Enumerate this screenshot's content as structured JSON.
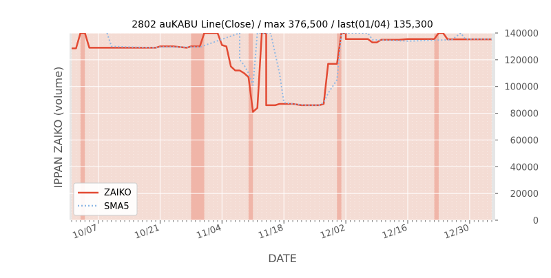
{
  "chart_data": {
    "type": "line",
    "title": "2802 auKABU Line(Close) / max 376,500 / last(01/04) 135,300",
    "xlabel": "DATE",
    "ylabel": "IPPAN ZAIKO (volume)",
    "ylim": [
      0,
      140000
    ],
    "y_side": "right",
    "y_ticks": [
      0,
      20000,
      40000,
      60000,
      80000,
      100000,
      120000,
      140000
    ],
    "y_tick_labels": [
      "0",
      "20000",
      "40000",
      "60000",
      "80000",
      "100000",
      "120000",
      "140000"
    ],
    "x_tick_labels": [
      "10/07",
      "10/21",
      "11/04",
      "11/18",
      "12/02",
      "12/16",
      "12/30"
    ],
    "x_range": [
      "2019-10-01",
      "2020-01-04"
    ],
    "x_ticks": [
      "2019-10-07",
      "2019-10-21",
      "2019-11-04",
      "2019-11-18",
      "2019-12-02",
      "2019-12-16",
      "2019-12-30"
    ],
    "legend_position": "lower-left",
    "grid": true,
    "colors": {
      "zaiko": "#e24a33",
      "sma5": "#8eb8e5",
      "plot_bg": "#f4dcd4",
      "highlight_band": "#efaea0",
      "outer_band": "#e5e5e5"
    },
    "highlight_bands": [
      [
        "2019-10-03",
        "2019-10-04"
      ],
      [
        "2019-10-28",
        "2019-10-31"
      ],
      [
        "2019-11-10",
        "2019-11-11"
      ],
      [
        "2019-11-30",
        "2019-12-01"
      ],
      [
        "2019-12-22",
        "2019-12-23"
      ]
    ],
    "series": [
      {
        "name": "ZAIKO",
        "style": "solid",
        "points": [
          [
            "2019-10-01",
            128500
          ],
          [
            "2019-10-02",
            128500
          ],
          [
            "2019-10-03",
            140000
          ],
          [
            "2019-10-04",
            140000
          ],
          [
            "2019-10-05",
            129000
          ],
          [
            "2019-10-07",
            129000
          ],
          [
            "2019-10-14",
            129000
          ],
          [
            "2019-10-20",
            129000
          ],
          [
            "2019-10-21",
            130000
          ],
          [
            "2019-10-24",
            130000
          ],
          [
            "2019-10-27",
            129000
          ],
          [
            "2019-10-28",
            130000
          ],
          [
            "2019-10-30",
            130000
          ],
          [
            "2019-10-31",
            140000
          ],
          [
            "2019-11-03",
            140000
          ],
          [
            "2019-11-04",
            131000
          ],
          [
            "2019-11-05",
            130000
          ],
          [
            "2019-11-06",
            115000
          ],
          [
            "2019-11-07",
            112000
          ],
          [
            "2019-11-08",
            112000
          ],
          [
            "2019-11-09",
            110000
          ],
          [
            "2019-11-10",
            107000
          ],
          [
            "2019-11-11",
            81000
          ],
          [
            "2019-11-12",
            84000
          ],
          [
            "2019-11-13",
            140000
          ],
          [
            "2019-11-14",
            140000
          ],
          [
            "2019-11-14",
            86000
          ],
          [
            "2019-11-16",
            86000
          ],
          [
            "2019-11-17",
            87000
          ],
          [
            "2019-11-20",
            87000
          ],
          [
            "2019-11-22",
            86000
          ],
          [
            "2019-11-26",
            86000
          ],
          [
            "2019-11-27",
            87000
          ],
          [
            "2019-11-28",
            117000
          ],
          [
            "2019-11-30",
            117000
          ],
          [
            "2019-12-01",
            140000
          ],
          [
            "2019-12-02",
            140000
          ],
          [
            "2019-12-02",
            135500
          ],
          [
            "2019-12-07",
            135500
          ],
          [
            "2019-12-08",
            133000
          ],
          [
            "2019-12-09",
            133000
          ],
          [
            "2019-12-10",
            135000
          ],
          [
            "2019-12-14",
            135000
          ],
          [
            "2019-12-16",
            135500
          ],
          [
            "2019-12-22",
            135500
          ],
          [
            "2019-12-23",
            140000
          ],
          [
            "2019-12-24",
            140000
          ],
          [
            "2019-12-25",
            135300
          ],
          [
            "2020-01-04",
            135300
          ]
        ]
      },
      {
        "name": "SMA5",
        "style": "dotted",
        "points": [
          [
            "2019-10-09",
            140000
          ],
          [
            "2019-10-10",
            130000
          ],
          [
            "2019-10-14",
            129500
          ],
          [
            "2019-10-20",
            129000
          ],
          [
            "2019-10-21",
            129500
          ],
          [
            "2019-10-30",
            129500
          ],
          [
            "2019-11-08",
            140000
          ],
          [
            "2019-11-08",
            120000
          ],
          [
            "2019-11-09",
            116000
          ],
          [
            "2019-11-10",
            110000
          ],
          [
            "2019-11-11",
            101000
          ],
          [
            "2019-11-12",
            140000
          ],
          [
            "2019-11-15",
            140000
          ],
          [
            "2019-11-17",
            110000
          ],
          [
            "2019-11-18",
            88000
          ],
          [
            "2019-11-20",
            87000
          ],
          [
            "2019-11-23",
            86000
          ],
          [
            "2019-11-26",
            86000
          ],
          [
            "2019-11-27",
            88000
          ],
          [
            "2019-11-28",
            95000
          ],
          [
            "2019-11-30",
            105000
          ],
          [
            "2019-12-01",
            140000
          ],
          [
            "2019-12-07",
            140000
          ],
          [
            "2019-12-08",
            135000
          ],
          [
            "2019-12-16",
            134000
          ],
          [
            "2019-12-26",
            135000
          ],
          [
            "2019-12-28",
            140000
          ],
          [
            "2019-12-29",
            135500
          ],
          [
            "2020-01-04",
            135500
          ]
        ]
      }
    ]
  }
}
